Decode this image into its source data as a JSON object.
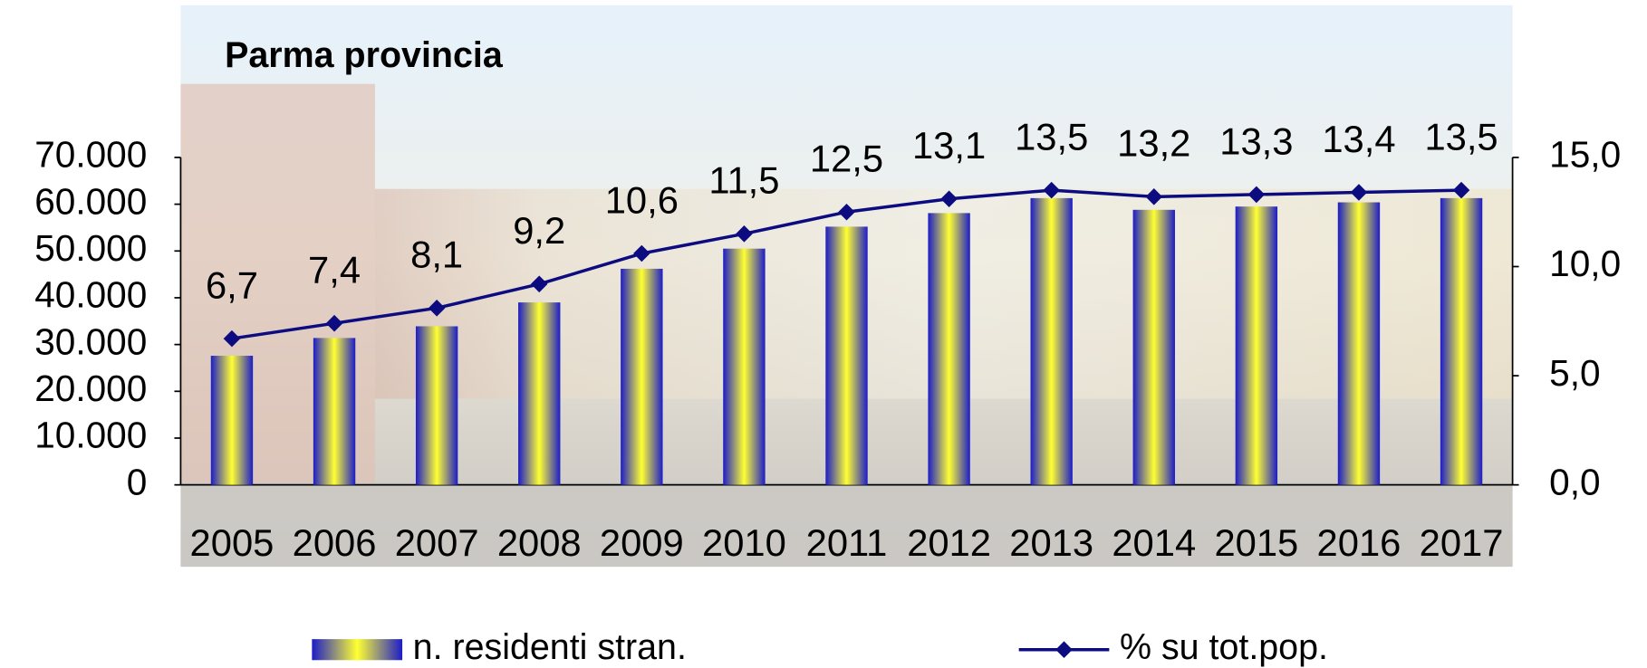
{
  "chart_data": {
    "type": "combo",
    "title": "Parma provincia",
    "categories": [
      "2005",
      "2006",
      "2007",
      "2008",
      "2009",
      "2010",
      "2011",
      "2012",
      "2013",
      "2014",
      "2015",
      "2016",
      "2017"
    ],
    "series": [
      {
        "name": "n. residenti stran.",
        "type": "bar",
        "colors": [
          "#1c1cc8",
          "#ffff33"
        ],
        "values": [
          27600,
          31400,
          33900,
          39000,
          46200,
          50500,
          55200,
          58100,
          61300,
          58800,
          59500,
          60400,
          61300
        ]
      },
      {
        "name": "% su tot.pop.",
        "type": "line",
        "axis": "y2",
        "color": "#0c0c80",
        "values": [
          6.7,
          7.4,
          8.1,
          9.2,
          10.6,
          11.5,
          12.5,
          13.1,
          13.5,
          13.2,
          13.3,
          13.4,
          13.5
        ],
        "value_labels": [
          "6,7",
          "7,4",
          "8,1",
          "9,2",
          "10,6",
          "11,5",
          "12,5",
          "13,1",
          "13,5",
          "13,2",
          "13,3",
          "13,4",
          "13,5"
        ]
      }
    ],
    "ylim": [
      0,
      70000
    ],
    "yticks": [
      0,
      {
        "value": 10000,
        "label": "10.000"
      },
      {
        "value": 20000,
        "label": "20.000"
      },
      {
        "value": 30000,
        "label": "30.000"
      },
      {
        "value": 40000,
        "label": "40.000"
      },
      {
        "value": 50000,
        "label": "50.000"
      },
      {
        "value": 60000,
        "label": "60.000"
      },
      {
        "value": 70000,
        "label": "70.000"
      }
    ],
    "y2lim": [
      0,
      15
    ],
    "y2ticks": [
      {
        "value": 0,
        "label": "0,0"
      },
      {
        "value": 5,
        "label": "5,0"
      },
      {
        "value": 10,
        "label": "10,0"
      },
      {
        "value": 15,
        "label": "15,0"
      }
    ]
  }
}
